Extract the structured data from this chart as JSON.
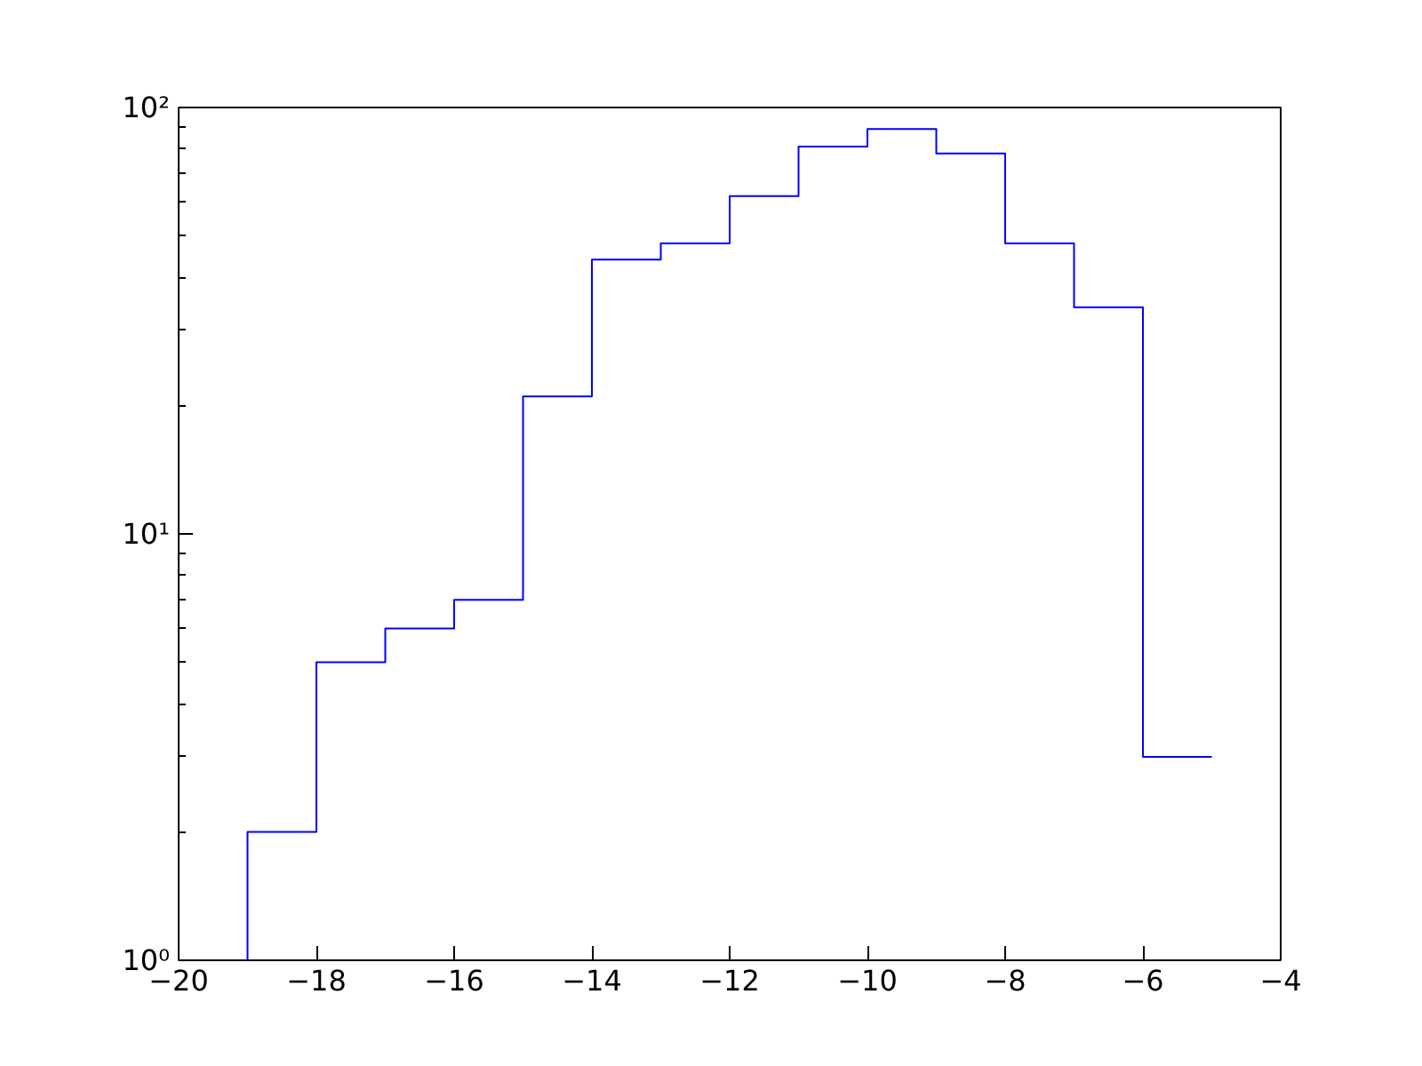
{
  "chart_data": {
    "type": "histogram",
    "bins": [
      -19,
      -18,
      -17,
      -16,
      -15,
      -14,
      -13,
      -12,
      -11,
      -10,
      -9,
      -8,
      -7,
      -6,
      -5
    ],
    "values": [
      2,
      5,
      6,
      7,
      21,
      44,
      48,
      62,
      81,
      89,
      78,
      48,
      34,
      3
    ],
    "color": "#0000ff",
    "log": "y",
    "grid": false,
    "xlim": [
      -20,
      -4
    ],
    "xticks": [
      {
        "value": -20,
        "label": "−20"
      },
      {
        "value": -18,
        "label": "−18"
      },
      {
        "value": -16,
        "label": "−16"
      },
      {
        "value": -14,
        "label": "−14"
      },
      {
        "value": -12,
        "label": "−12"
      },
      {
        "value": -10,
        "label": "−10"
      },
      {
        "value": -8,
        "label": "−8"
      },
      {
        "value": -6,
        "label": "−6"
      },
      {
        "value": -4,
        "label": "−4"
      }
    ],
    "ylim": [
      1,
      100
    ],
    "yticks": [
      {
        "value": 1,
        "label": "10⁰"
      },
      {
        "value": 10,
        "label": "10¹"
      },
      {
        "value": 100,
        "label": "10²"
      }
    ]
  }
}
